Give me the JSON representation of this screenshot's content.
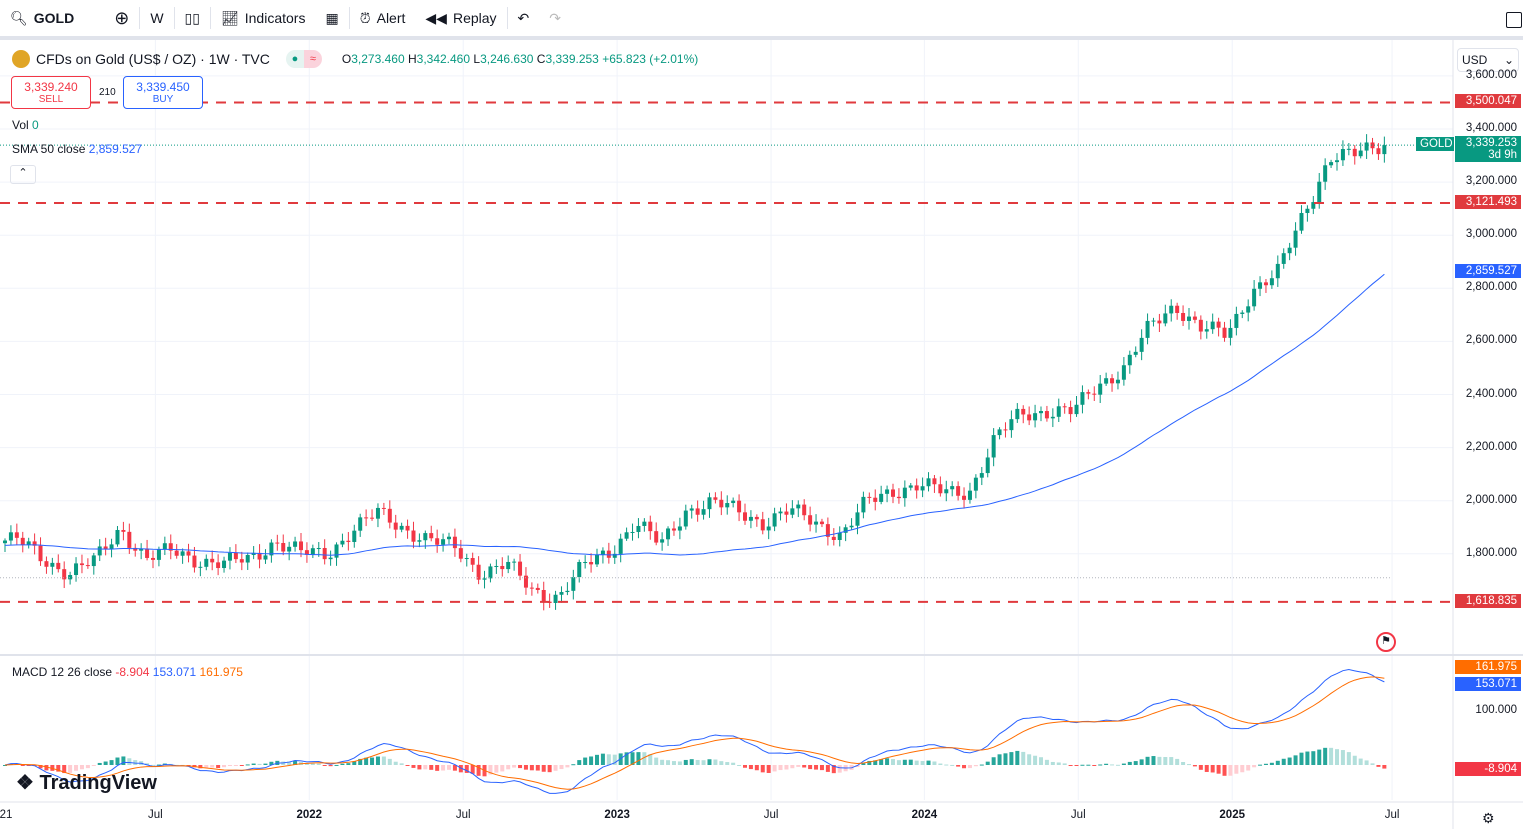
{
  "toolbar": {
    "symbol": "GOLD",
    "interval": "W",
    "indicators": "Indicators",
    "alert": "Alert",
    "replay": "Replay"
  },
  "legend": {
    "title": "CFDs on Gold (US$ / OZ) · 1W · TVC",
    "o_label": "O",
    "o": "3,273.460",
    "h_label": "H",
    "h": "3,342.460",
    "l_label": "L",
    "l": "3,246.630",
    "c_label": "C",
    "c": "3,339.253",
    "change": "+65.823 (+2.01%)"
  },
  "trade": {
    "sell_price": "3,339.240",
    "sell": "SELL",
    "spread": "210",
    "buy_price": "3,339.450",
    "buy": "BUY"
  },
  "vol": {
    "label": "Vol",
    "value": "0"
  },
  "sma": {
    "label": "SMA 50 close",
    "value": "2,859.527"
  },
  "macd": {
    "label": "MACD 12 26 close",
    "hist": "-8.904",
    "macd": "153.071",
    "signal": "161.975"
  },
  "currency": "USD",
  "colors": {
    "up": "#089981",
    "down": "#f23645",
    "sma": "#2962ff",
    "signal": "#ff6d00",
    "level": "#e03a3e"
  },
  "price_axis": [
    "3,600.000",
    "3,400.000",
    "3,200.000",
    "3,000.000",
    "2,800.000",
    "2,600.000",
    "2,400.000",
    "2,200.000",
    "2,000.000",
    "1,800.000"
  ],
  "price_ticks": [
    3600,
    3400,
    3200,
    3000,
    2800,
    2600,
    2400,
    2200,
    2000,
    1800
  ],
  "levels": [
    {
      "value": 3500.047,
      "label": "3,500.047"
    },
    {
      "value": 3121.493,
      "label": "3,121.493"
    },
    {
      "value": 1618.835,
      "label": "1,618.835"
    }
  ],
  "last": {
    "symbol": "GOLD",
    "price": "3,339.253",
    "countdown": "3d 9h",
    "value": 3339.253
  },
  "sma_tag": "2,859.527",
  "sma_value": 2859.527,
  "macd_axis": {
    "label": "100.000",
    "value": 100
  },
  "macd_tags": {
    "signal": "161.975",
    "macd": "153.071",
    "hist": "-8.904"
  },
  "time_axis": [
    {
      "label": "21",
      "week": -1
    },
    {
      "label": "Jul",
      "week": 25.4
    },
    {
      "label": "2022",
      "week": 51.4
    },
    {
      "label": "Jul",
      "week": 77.4
    },
    {
      "label": "2023",
      "week": 103.4
    },
    {
      "label": "Jul",
      "week": 129.4
    },
    {
      "label": "2024",
      "week": 155.3
    },
    {
      "label": "Jul",
      "week": 181.3
    },
    {
      "label": "2025",
      "week": 207.3
    },
    {
      "label": "Jul",
      "week": 234.3
    }
  ],
  "brand": "TradingView",
  "chart_data": {
    "type": "candlestick",
    "interval": "1W",
    "start": "2021-01",
    "monthly_closes": [
      1850,
      1780,
      1730,
      1770,
      1900,
      1780,
      1810,
      1780,
      1760,
      1780,
      1850,
      1800,
      1800,
      1890,
      1950,
      1900,
      1850,
      1820,
      1730,
      1760,
      1660,
      1640,
      1750,
      1810,
      1920,
      1830,
      1970,
      1990,
      1960,
      1920,
      1960,
      1920,
      1870,
      1990,
      2040,
      2060,
      2030,
      2040,
      2230,
      2330,
      2340,
      2330,
      2440,
      2500,
      2650,
      2740,
      2650,
      2620,
      2800,
      2860,
      3080,
      3300,
      3300,
      3339
    ],
    "ylim": [
      1550,
      3620
    ]
  }
}
